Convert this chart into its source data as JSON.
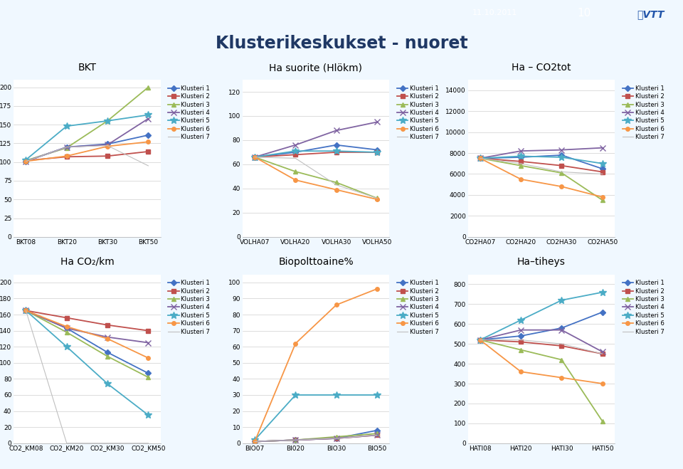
{
  "title": "Klusterikeskukset - nuoret",
  "slide_bg": "#f0f8ff",
  "chart_bg": "#ffffff",
  "top_bar_bg": "#29ABE2",
  "header_bg": "#d6eaf8",
  "clusters": [
    "Klusteri 1",
    "Klusteri 2",
    "Klusteri 3",
    "Klusteri 4",
    "Klusteri 5",
    "Klusteri 6",
    "Klusteri 7"
  ],
  "colors": [
    "#4472C4",
    "#C0504D",
    "#9BBB59",
    "#8064A2",
    "#4BACC6",
    "#F79646",
    "#C0C0C0"
  ],
  "bkt": {
    "title": "BKT",
    "xlabel": [
      "BKT08",
      "BKT20",
      "BKT30",
      "BKT50"
    ],
    "ylim": [
      0,
      210
    ],
    "yticks": [
      0,
      25,
      50,
      75,
      100,
      125,
      150,
      175,
      200
    ],
    "series": [
      [
        101,
        120,
        124,
        136
      ],
      [
        102,
        107,
        108,
        114
      ],
      [
        102,
        119,
        155,
        200
      ],
      [
        101,
        120,
        123,
        158
      ],
      [
        103,
        148,
        155,
        163
      ],
      [
        101,
        108,
        121,
        127
      ],
      [
        101,
        120,
        122,
        95
      ]
    ]
  },
  "ha_suorite": {
    "title": "Ha suorite (Hlökm)",
    "xlabel": [
      "VOLHA07",
      "VOLHA20",
      "VOLHA30",
      "VOLHA50"
    ],
    "ylim": [
      0,
      130
    ],
    "yticks": [
      0,
      20,
      40,
      60,
      80,
      100,
      120
    ],
    "series": [
      [
        66,
        70,
        76,
        72
      ],
      [
        66,
        68,
        70,
        70
      ],
      [
        66,
        54,
        45,
        32
      ],
      [
        66,
        76,
        88,
        95
      ],
      [
        66,
        71,
        71,
        70
      ],
      [
        66,
        47,
        39,
        31
      ],
      [
        66,
        65,
        43,
        32
      ]
    ]
  },
  "ha_co2tot": {
    "title": "Ha – CO2tot",
    "xlabel": [
      "CO2HA07",
      "CO2HA20",
      "CO2HA30",
      "CO2HA50"
    ],
    "ylim": [
      0,
      15000
    ],
    "yticks": [
      0,
      2000,
      4000,
      6000,
      8000,
      10000,
      12000,
      14000
    ],
    "series": [
      [
        7500,
        7600,
        7800,
        6500
      ],
      [
        7500,
        7200,
        6800,
        6200
      ],
      [
        7500,
        6800,
        6100,
        3500
      ],
      [
        7500,
        8200,
        8300,
        8500
      ],
      [
        7500,
        7700,
        7600,
        7000
      ],
      [
        7500,
        5500,
        4800,
        3800
      ],
      [
        7500,
        7000,
        6200,
        6000
      ]
    ]
  },
  "ha_co2km": {
    "title": "Ha CO₂/km",
    "xlabel": [
      "CO2_KM08",
      "CO2_KM20",
      "CO2_KM30",
      "CO2_KM50"
    ],
    "ylim": [
      0,
      210
    ],
    "yticks": [
      0,
      20,
      40,
      60,
      80,
      100,
      120,
      140,
      160,
      180,
      200
    ],
    "series": [
      [
        165,
        143,
        113,
        87
      ],
      [
        165,
        156,
        147,
        140
      ],
      [
        165,
        138,
        108,
        82
      ],
      [
        165,
        143,
        132,
        125
      ],
      [
        165,
        120,
        74,
        35
      ],
      [
        165,
        145,
        130,
        106
      ],
      [
        165,
        0,
        0,
        0
      ]
    ]
  },
  "biopolttoaine": {
    "title": "Biopolttoaine%",
    "xlabel": [
      "BIO07",
      "BI020",
      "BIO30",
      "BIO50"
    ],
    "ylim": [
      0,
      105
    ],
    "yticks": [
      0,
      10,
      20,
      30,
      40,
      50,
      60,
      70,
      80,
      90,
      100
    ],
    "series": [
      [
        1,
        2,
        3,
        8
      ],
      [
        1,
        2,
        3,
        5
      ],
      [
        1,
        2,
        4,
        6
      ],
      [
        1,
        2,
        3,
        5
      ],
      [
        2,
        30,
        30,
        30
      ],
      [
        1,
        62,
        86,
        96
      ],
      [
        1,
        2,
        3,
        5
      ]
    ]
  },
  "ha_tiheys": {
    "title": "Ha–tiheys",
    "xlabel": [
      "HATI08",
      "HATI20",
      "HATI30",
      "HATI50"
    ],
    "ylim": [
      0,
      850
    ],
    "yticks": [
      0,
      100,
      200,
      300,
      400,
      500,
      600,
      700,
      800
    ],
    "series": [
      [
        520,
        540,
        580,
        660
      ],
      [
        520,
        510,
        490,
        450
      ],
      [
        520,
        470,
        420,
        110
      ],
      [
        520,
        570,
        570,
        460
      ],
      [
        520,
        620,
        720,
        760
      ],
      [
        520,
        360,
        330,
        300
      ],
      [
        520,
        520,
        500,
        450
      ]
    ]
  }
}
